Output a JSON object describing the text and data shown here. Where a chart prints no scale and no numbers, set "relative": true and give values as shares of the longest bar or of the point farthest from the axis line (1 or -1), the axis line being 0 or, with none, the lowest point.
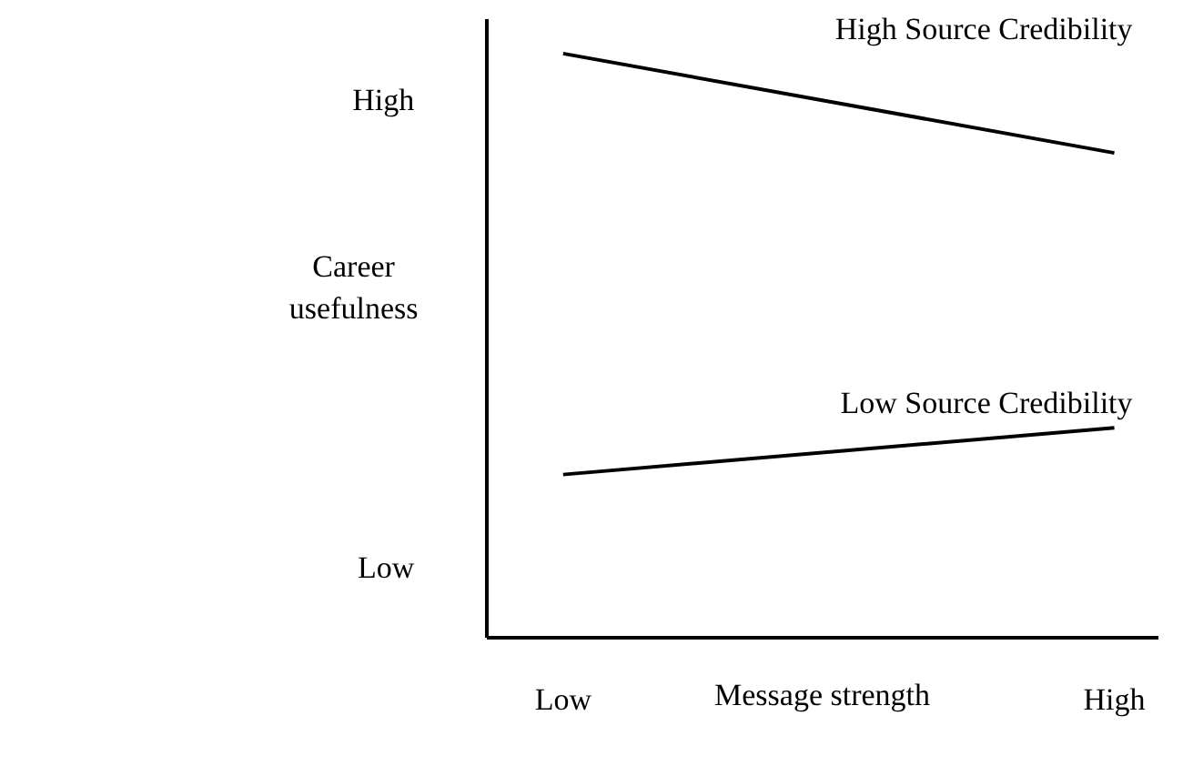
{
  "chart_data": {
    "type": "line",
    "xlabel": "Message strength",
    "ylabel": "Career usefulness",
    "categories": [
      "Low",
      "High"
    ],
    "series": [
      {
        "name": "High Source Credibility",
        "color": "#000000",
        "values": [
          1,
          0.83
        ]
      },
      {
        "name": "Low Source Credibility",
        "color": "#000000",
        "values": [
          0.28,
          0.36
        ]
      }
    ],
    "relative": true,
    "annotations": [
      "High",
      "Low"
    ],
    "grid": false,
    "legend": false,
    "marker": "none",
    "line_style": "solid"
  }
}
